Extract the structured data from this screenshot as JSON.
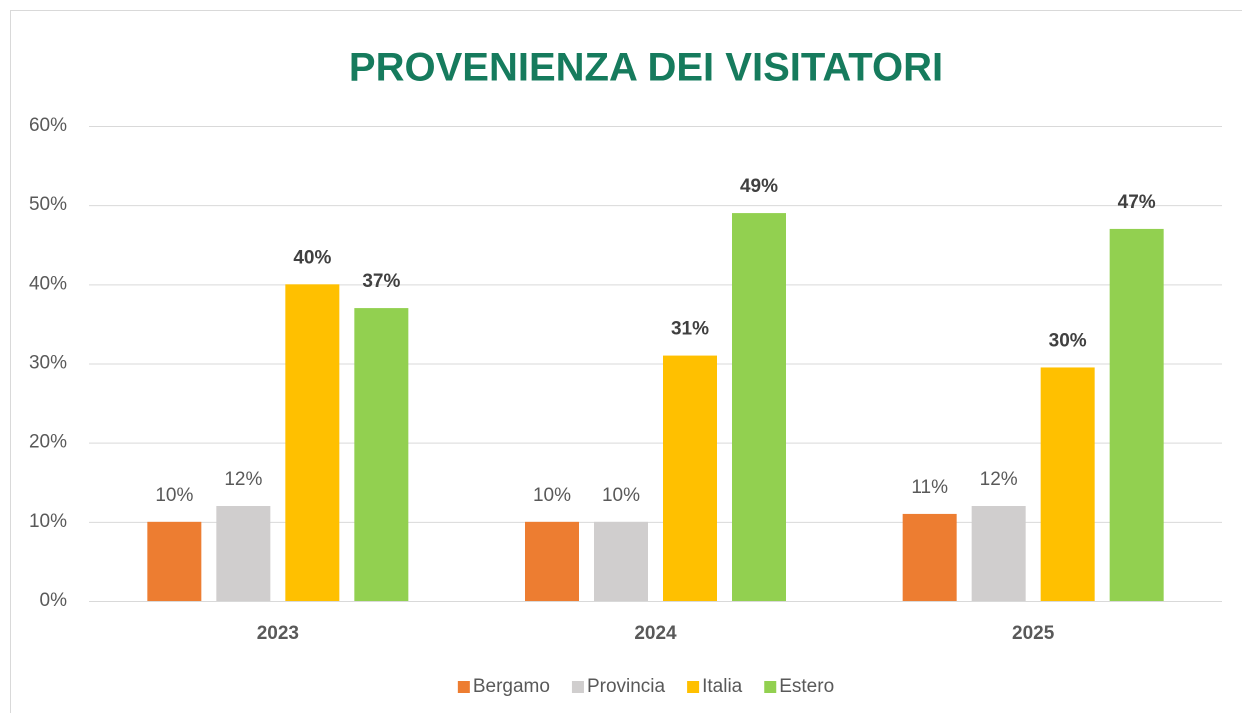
{
  "chart_data": {
    "type": "bar",
    "title": "PROVENIENZA DEI VISITATORI",
    "categories": [
      "2023",
      "2024",
      "2025"
    ],
    "series": [
      {
        "name": "Bergamo",
        "color": "#ed7d31",
        "values": [
          10,
          10,
          11
        ],
        "value_labels": [
          "10%",
          "10%",
          "11%"
        ],
        "bold_labels": false
      },
      {
        "name": "Provincia",
        "color": "#d0cece",
        "values": [
          12,
          10,
          12
        ],
        "value_labels": [
          "12%",
          "10%",
          "12%"
        ],
        "bold_labels": false
      },
      {
        "name": "Italia",
        "color": "#ffc000",
        "values": [
          40,
          31,
          29.5
        ],
        "value_labels": [
          "40%",
          "31%",
          "30%"
        ],
        "bold_labels": true
      },
      {
        "name": "Estero",
        "color": "#92d050",
        "values": [
          37,
          49,
          47
        ],
        "value_labels": [
          "37%",
          "49%",
          "47%"
        ],
        "bold_labels": true
      }
    ],
    "ylim": [
      0,
      60
    ],
    "yticks": [
      {
        "value": 0,
        "label": "0%"
      },
      {
        "value": 10,
        "label": "10%"
      },
      {
        "value": 20,
        "label": "20%"
      },
      {
        "value": 30,
        "label": "30%"
      },
      {
        "value": 40,
        "label": "40%"
      },
      {
        "value": 50,
        "label": "50%"
      },
      {
        "value": 60,
        "label": "60%"
      }
    ],
    "grid": true,
    "legend": "bottom"
  }
}
